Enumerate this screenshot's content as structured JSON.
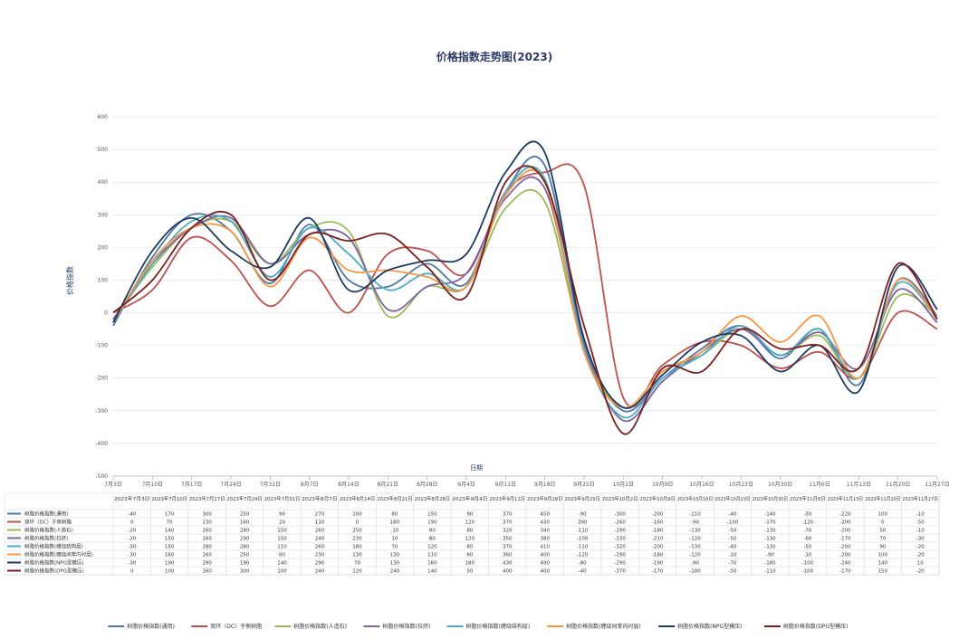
{
  "chart_data": {
    "type": "line",
    "title": "价格指数走势图(2023)",
    "xlabel": "日期",
    "ylabel": "价格指数",
    "ylim": [
      -500,
      600
    ],
    "yticks": [
      600,
      500,
      400,
      300,
      200,
      100,
      0,
      -100,
      -200,
      -300,
      -400,
      -500
    ],
    "grid": true,
    "legend_position": "bottom",
    "x_tick_labels": [
      "7月3日",
      "7月10日",
      "7月17日",
      "7月24日",
      "7月31日",
      "8月7日",
      "8月14日",
      "8月21日",
      "8月28日",
      "9月4日",
      "9月11日",
      "9月18日",
      "9月25日",
      "10月2日",
      "10月9日",
      "10月16日",
      "10月23日",
      "10月30日",
      "11月6日",
      "11月13日",
      "11月20日",
      "11月27日"
    ],
    "categories": [
      "2023年7月3日",
      "2023年7月10日",
      "2023年7月17日",
      "2023年7月24日",
      "2023年7月31日",
      "2023年8月7日",
      "2023年8月14日",
      "2023年8月21日",
      "2023年8月28日",
      "2023年9月4日",
      "2023年9月11日",
      "2023年9月18日",
      "2023年9月25日",
      "2023年10月2日",
      "2023年10月9日",
      "2023年10月16日",
      "2023年10月23日",
      "2023年10月30日",
      "2023年11月6日",
      "2023年11月13日",
      "2023年11月20日",
      "2023年11月27日"
    ],
    "series": [
      {
        "name": "树脂价格指数(通用)",
        "color": "#4e79a7",
        "values": [
          -40,
          170,
          300,
          250,
          90,
          270,
          100,
          80,
          150,
          90,
          370,
          450,
          -90,
          -300,
          -200,
          -110,
          -40,
          -140,
          -50,
          -220,
          100,
          -10
        ]
      },
      {
        "name": "双环（DC）于侧树脂",
        "color": "#c0504d",
        "values": [
          0,
          70,
          230,
          160,
          20,
          130,
          0,
          180,
          190,
          120,
          370,
          430,
          390,
          -260,
          -160,
          -90,
          -100,
          -170,
          -120,
          -200,
          0,
          -50
        ]
      },
      {
        "name": "树脂价格指数(人造石)",
        "color": "#9bbb59",
        "values": [
          -20,
          140,
          260,
          280,
          150,
          260,
          250,
          -10,
          80,
          80,
          320,
          340,
          -110,
          -290,
          -180,
          -130,
          -50,
          -130,
          -70,
          -200,
          50,
          -10
        ]
      },
      {
        "name": "树脂价格指数(拉挤)",
        "color": "#8064a2",
        "values": [
          -20,
          150,
          260,
          290,
          150,
          240,
          230,
          10,
          80,
          120,
          350,
          380,
          -100,
          -330,
          -210,
          -120,
          -50,
          -130,
          -60,
          -170,
          70,
          -30
        ]
      },
      {
        "name": "树脂价格指数(缠绕结构层)",
        "color": "#4bacc6",
        "values": [
          -30,
          150,
          280,
          280,
          110,
          260,
          180,
          70,
          120,
          80,
          370,
          410,
          -110,
          -320,
          -200,
          -130,
          -40,
          -130,
          -50,
          -200,
          90,
          -20
        ]
      },
      {
        "name": "树脂价格指数(缠绕间苯内衬层)",
        "color": "#f79646",
        "values": [
          -30,
          160,
          260,
          250,
          80,
          230,
          130,
          130,
          110,
          80,
          360,
          400,
          -120,
          -290,
          -180,
          -120,
          -10,
          -90,
          -10,
          -200,
          100,
          -20
        ]
      },
      {
        "name": "树脂价格指数(NPG型模压)",
        "color": "#1f3a5f",
        "values": [
          -30,
          190,
          290,
          190,
          140,
          290,
          70,
          130,
          160,
          180,
          430,
          490,
          -80,
          -290,
          -190,
          -90,
          -70,
          -180,
          -100,
          -240,
          140,
          10
        ]
      },
      {
        "name": "树脂价格指数(DPG型模压)",
        "color": "#7b1e1e",
        "values": [
          0,
          100,
          260,
          300,
          100,
          240,
          220,
          240,
          140,
          50,
          400,
          400,
          -40,
          -370,
          -170,
          -180,
          -50,
          -110,
          -100,
          -170,
          150,
          -20
        ]
      }
    ]
  }
}
